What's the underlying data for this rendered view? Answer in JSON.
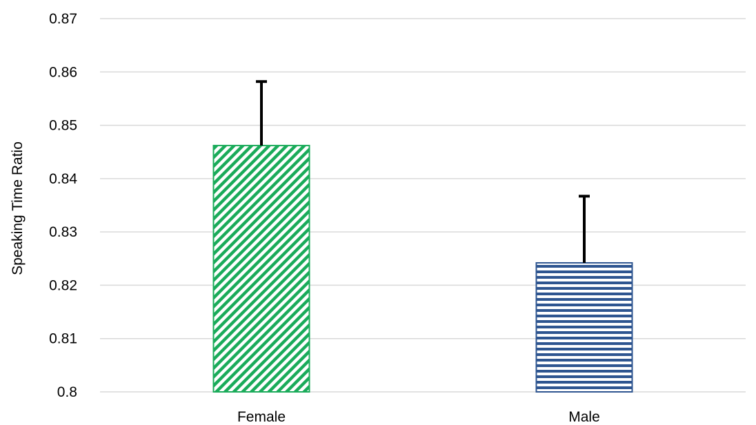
{
  "chart_data": {
    "type": "bar",
    "title": "",
    "xlabel": "",
    "ylabel": "Speaking Time Ratio",
    "ylim": [
      0.8,
      0.87
    ],
    "yticks": [
      "0.8",
      "0.81",
      "0.82",
      "0.83",
      "0.84",
      "0.85",
      "0.86",
      "0.87"
    ],
    "ytick_values": [
      0.8,
      0.81,
      0.82,
      0.83,
      0.84,
      0.85,
      0.86,
      0.87
    ],
    "grid": true,
    "legend": "none",
    "categories": [
      "Female",
      "Male"
    ],
    "values": [
      0.8462,
      0.8242
    ],
    "error_upper": [
      0.012,
      0.0125
    ],
    "bar_styles": [
      {
        "pattern": "diagonal-hatch",
        "color": "#1aab5a"
      },
      {
        "pattern": "horizontal-stripes",
        "color": "#2e5590"
      }
    ],
    "colors": {
      "gridline": "#d9d9d9",
      "error_bar": "#000000",
      "text": "#000000"
    }
  }
}
